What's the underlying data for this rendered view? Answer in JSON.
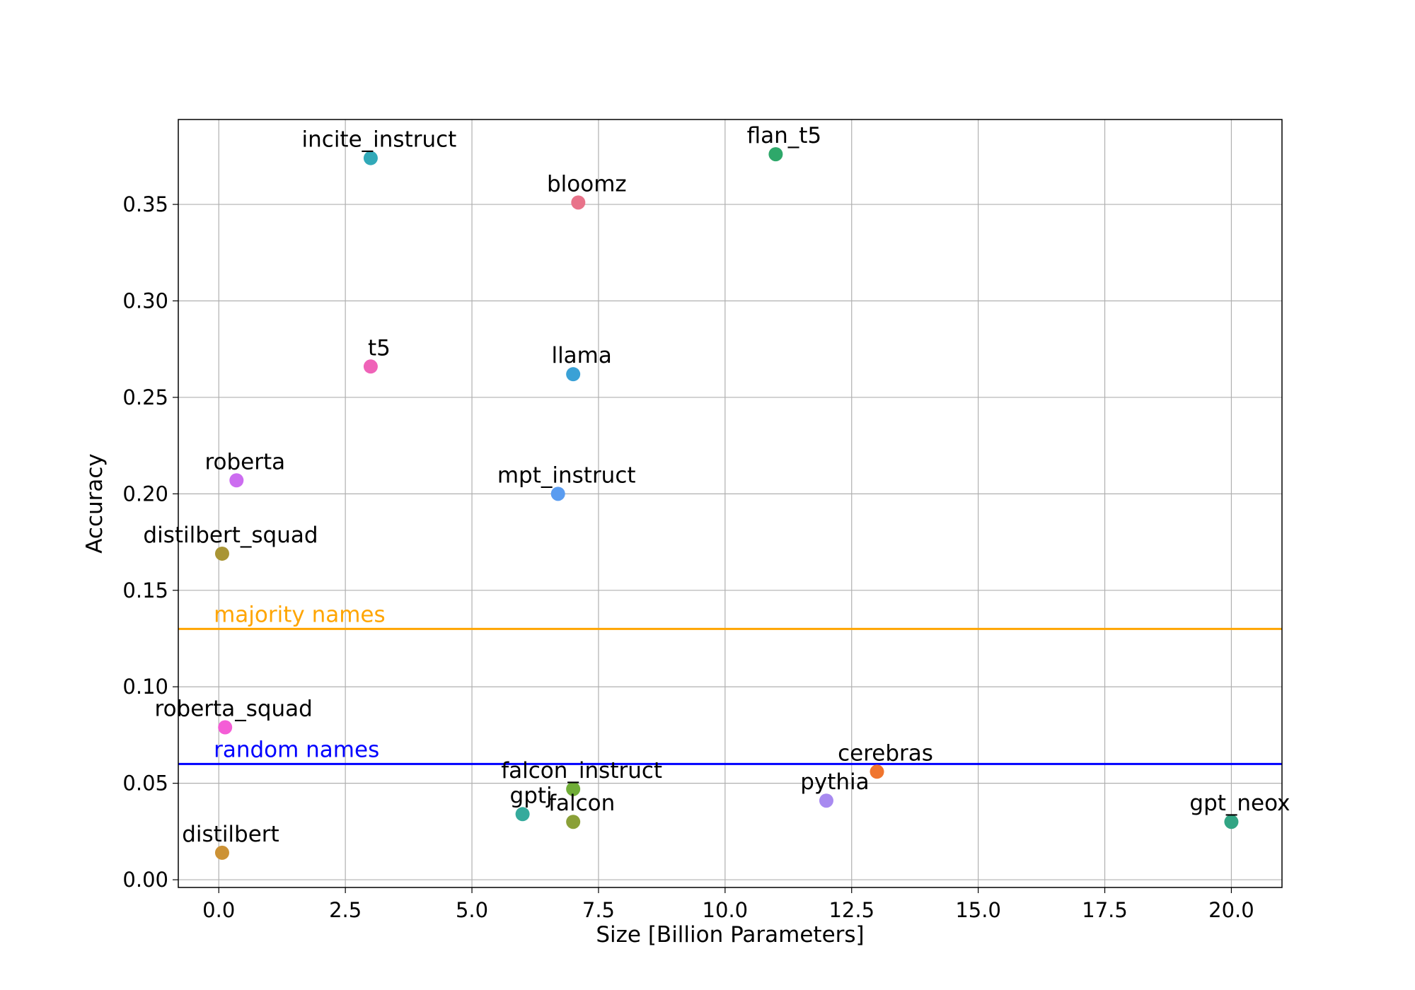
{
  "chart_data": {
    "type": "scatter",
    "title": "",
    "xlabel": "Size [Billion Parameters]",
    "ylabel": "Accuracy",
    "xlim": [
      -0.8,
      21.0
    ],
    "ylim": [
      -0.004,
      0.394
    ],
    "xticks": [
      0.0,
      2.5,
      5.0,
      7.5,
      10.0,
      12.5,
      15.0,
      17.5,
      20.0
    ],
    "xtick_labels": [
      "0.0",
      "2.5",
      "5.0",
      "7.5",
      "10.0",
      "12.5",
      "15.0",
      "17.5",
      "20.0"
    ],
    "yticks": [
      0.0,
      0.05,
      0.1,
      0.15,
      0.2,
      0.25,
      0.3,
      0.35
    ],
    "ytick_labels": [
      "0.00",
      "0.05",
      "0.10",
      "0.15",
      "0.20",
      "0.25",
      "0.30",
      "0.35"
    ],
    "grid": true,
    "points": [
      {
        "name": "incite_instruct",
        "x": 3.0,
        "y": 0.374,
        "color": "#31a9b8"
      },
      {
        "name": "flan_t5",
        "x": 11.0,
        "y": 0.376,
        "color": "#2ea86a"
      },
      {
        "name": "bloomz",
        "x": 7.1,
        "y": 0.351,
        "color": "#e8738a"
      },
      {
        "name": "t5",
        "x": 3.0,
        "y": 0.266,
        "color": "#ef63b8"
      },
      {
        "name": "llama",
        "x": 7.0,
        "y": 0.262,
        "color": "#3aa1d6"
      },
      {
        "name": "roberta",
        "x": 0.35,
        "y": 0.207,
        "color": "#cc6df0"
      },
      {
        "name": "mpt_instruct",
        "x": 6.7,
        "y": 0.2,
        "color": "#5a9cf0"
      },
      {
        "name": "distilbert_squad",
        "x": 0.066,
        "y": 0.169,
        "color": "#a99535"
      },
      {
        "name": "roberta_squad",
        "x": 0.125,
        "y": 0.079,
        "color": "#f45dd6"
      },
      {
        "name": "cerebras",
        "x": 13.0,
        "y": 0.056,
        "color": "#f0752e"
      },
      {
        "name": "falcon_instruct",
        "x": 7.0,
        "y": 0.047,
        "color": "#70ad37"
      },
      {
        "name": "pythia",
        "x": 12.0,
        "y": 0.041,
        "color": "#a88af0"
      },
      {
        "name": "gptj",
        "x": 6.0,
        "y": 0.034,
        "color": "#35aa9c"
      },
      {
        "name": "falcon",
        "x": 7.0,
        "y": 0.03,
        "color": "#8aa038"
      },
      {
        "name": "gpt_neox",
        "x": 20.0,
        "y": 0.03,
        "color": "#32a584"
      },
      {
        "name": "distilbert",
        "x": 0.066,
        "y": 0.014,
        "color": "#cc9235"
      }
    ],
    "reference_lines": [
      {
        "label": "majority names",
        "y": 0.13,
        "color": "#ffa500"
      },
      {
        "label": "random names",
        "y": 0.06,
        "color": "#0000ff"
      }
    ]
  }
}
